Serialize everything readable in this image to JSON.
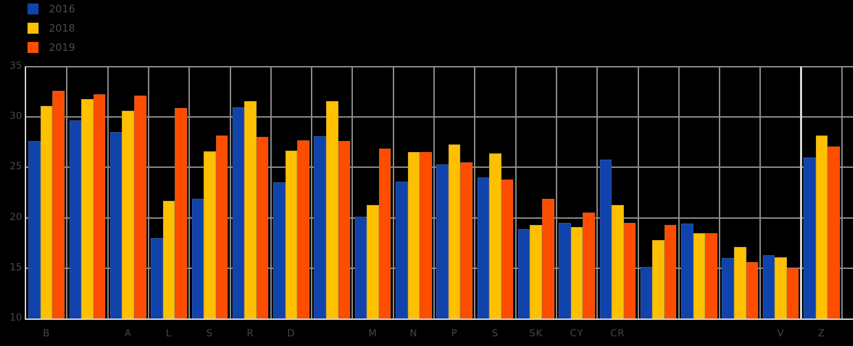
{
  "legend": {
    "items": [
      {
        "label": "2016",
        "color": "#1043AC"
      },
      {
        "label": "2018",
        "color": "#FFC000"
      },
      {
        "label": "2019",
        "color": "#FF4D00"
      }
    ]
  },
  "colors": {
    "background": "#000000",
    "gridline": "#8d8d8d",
    "axis_line": "#d6d6d6",
    "axis_text": "#4a4a4a",
    "series_blue": "#1043AC",
    "series_yellow": "#FFC000",
    "series_orange": "#FF4D00"
  },
  "chart_data": {
    "type": "bar",
    "title": "",
    "xlabel": "",
    "ylabel": "",
    "ylim": [
      10,
      35
    ],
    "yticks": [
      10,
      15,
      20,
      25,
      30,
      35
    ],
    "grid": true,
    "legend_position": "top-left",
    "categories": [
      "B",
      "",
      "A",
      "L",
      "S",
      "R",
      "D",
      "",
      "M",
      "N",
      "P",
      "S",
      "SK",
      "CY",
      "CR",
      "",
      "",
      "",
      "V",
      "Z"
    ],
    "series": [
      {
        "name": "2016",
        "color": "#1043AC",
        "values": [
          27.6,
          29.7,
          28.5,
          18.0,
          21.9,
          31.0,
          23.5,
          28.1,
          20.1,
          23.6,
          25.3,
          24.0,
          18.9,
          19.5,
          25.8,
          15.1,
          19.4,
          16.0,
          16.3,
          26.0
        ]
      },
      {
        "name": "2018",
        "color": "#FFC000",
        "values": [
          31.1,
          31.8,
          30.6,
          21.7,
          26.6,
          31.6,
          26.7,
          31.6,
          21.3,
          26.5,
          27.3,
          26.4,
          19.3,
          19.1,
          21.3,
          17.8,
          18.5,
          17.1,
          16.1,
          28.2
        ]
      },
      {
        "name": "2019",
        "color": "#FF4D00",
        "values": [
          32.6,
          32.3,
          32.1,
          30.9,
          28.2,
          28.0,
          27.7,
          27.6,
          26.9,
          26.5,
          25.5,
          23.8,
          21.9,
          20.5,
          19.5,
          19.3,
          18.5,
          15.6,
          15.0,
          27.1
        ]
      }
    ],
    "divider_after_group_index": 19
  }
}
